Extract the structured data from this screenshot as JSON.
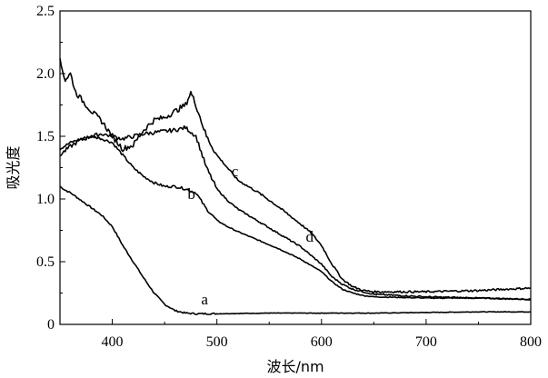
{
  "chart_data": {
    "type": "line",
    "title": "",
    "xlabel": "波长/nm",
    "ylabel": "吸光度",
    "xlim": [
      350,
      800
    ],
    "ylim": [
      0,
      2.5
    ],
    "xticks": [
      400,
      500,
      600,
      700,
      800
    ],
    "yticks": [
      0,
      0.5,
      1.0,
      1.5,
      2.0,
      2.5
    ],
    "ytick_labels": [
      "0",
      "0.5",
      "1.0",
      "1.5",
      "2.0",
      "2.5"
    ],
    "grid": false,
    "legend": "none",
    "series": [
      {
        "name": "a",
        "label_at": [
          485,
          0.16
        ],
        "x": [
          350,
          355,
          360,
          370,
          380,
          390,
          400,
          410,
          420,
          430,
          440,
          450,
          460,
          470,
          480,
          490,
          500,
          550,
          600,
          650,
          700,
          750,
          800
        ],
        "y": [
          1.1,
          1.07,
          1.05,
          0.99,
          0.93,
          0.87,
          0.78,
          0.63,
          0.5,
          0.37,
          0.25,
          0.16,
          0.11,
          0.09,
          0.085,
          0.085,
          0.085,
          0.09,
          0.09,
          0.09,
          0.095,
          0.1,
          0.1
        ]
      },
      {
        "name": "b",
        "label_at": [
          472,
          1.0
        ],
        "x": [
          350,
          360,
          370,
          380,
          390,
          400,
          410,
          420,
          430,
          440,
          450,
          460,
          470,
          480,
          490,
          500,
          510,
          520,
          540,
          560,
          580,
          600,
          610,
          620,
          630,
          640,
          650,
          700,
          750,
          800
        ],
        "y": [
          1.4,
          1.45,
          1.48,
          1.5,
          1.48,
          1.45,
          1.35,
          1.25,
          1.18,
          1.13,
          1.1,
          1.1,
          1.08,
          1.05,
          0.92,
          0.83,
          0.78,
          0.74,
          0.67,
          0.6,
          0.52,
          0.42,
          0.34,
          0.28,
          0.25,
          0.23,
          0.22,
          0.21,
          0.21,
          0.2
        ]
      },
      {
        "name": "c",
        "label_at": [
          514,
          1.18
        ],
        "x": [
          350,
          360,
          370,
          380,
          390,
          400,
          410,
          420,
          430,
          440,
          450,
          460,
          470,
          480,
          490,
          500,
          510,
          520,
          540,
          560,
          580,
          600,
          610,
          620,
          630,
          640,
          650,
          700,
          750,
          800
        ],
        "y": [
          1.35,
          1.42,
          1.47,
          1.5,
          1.52,
          1.5,
          1.48,
          1.5,
          1.52,
          1.53,
          1.54,
          1.55,
          1.57,
          1.5,
          1.25,
          1.08,
          0.99,
          0.92,
          0.82,
          0.72,
          0.62,
          0.48,
          0.38,
          0.32,
          0.28,
          0.26,
          0.24,
          0.22,
          0.21,
          0.2
        ]
      },
      {
        "name": "d",
        "label_at": [
          585,
          0.66
        ],
        "x": [
          350,
          355,
          360,
          365,
          370,
          380,
          390,
          400,
          410,
          420,
          430,
          440,
          450,
          460,
          470,
          475,
          480,
          490,
          500,
          510,
          520,
          540,
          560,
          580,
          590,
          600,
          610,
          620,
          630,
          640,
          650,
          700,
          750,
          800
        ],
        "y": [
          2.1,
          1.95,
          2.0,
          1.85,
          1.8,
          1.7,
          1.62,
          1.5,
          1.4,
          1.43,
          1.55,
          1.63,
          1.65,
          1.7,
          1.75,
          1.85,
          1.75,
          1.5,
          1.35,
          1.25,
          1.15,
          1.05,
          0.93,
          0.8,
          0.73,
          0.63,
          0.48,
          0.36,
          0.3,
          0.27,
          0.26,
          0.26,
          0.27,
          0.29
        ]
      }
    ]
  }
}
